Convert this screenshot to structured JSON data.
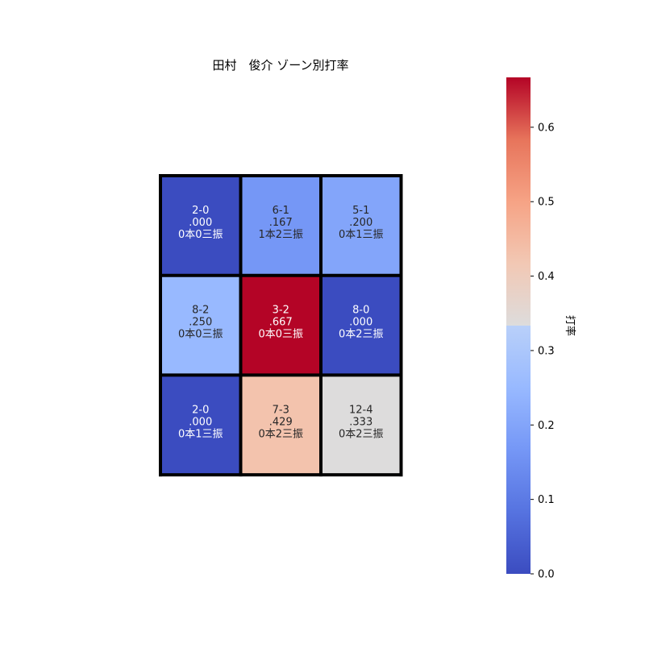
{
  "chart_data": {
    "type": "heatmap",
    "title": "田村　俊介 ゾーン別打率",
    "colorbar": {
      "label": "打率",
      "range": [
        0.0,
        0.667
      ],
      "ticks": [
        0.0,
        0.1,
        0.2,
        0.3,
        0.4,
        0.5,
        0.6
      ],
      "tick_labels": [
        "0.0",
        "0.1",
        "0.2",
        "0.3",
        "0.4",
        "0.5",
        "0.6"
      ],
      "colormap": "coolwarm"
    },
    "grid": {
      "rows": 3,
      "cols": 3,
      "cells": [
        [
          {
            "record": "2-0",
            "avg_label": ".000",
            "value": 0.0,
            "detail": "0本0三振"
          },
          {
            "record": "6-1",
            "avg_label": ".167",
            "value": 0.167,
            "detail": "1本2三振"
          },
          {
            "record": "5-1",
            "avg_label": ".200",
            "value": 0.2,
            "detail": "0本1三振"
          }
        ],
        [
          {
            "record": "8-2",
            "avg_label": ".250",
            "value": 0.25,
            "detail": "0本0三振"
          },
          {
            "record": "3-2",
            "avg_label": ".667",
            "value": 0.667,
            "detail": "0本0三振"
          },
          {
            "record": "8-0",
            "avg_label": ".000",
            "value": 0.0,
            "detail": "0本2三振"
          }
        ],
        [
          {
            "record": "2-0",
            "avg_label": ".000",
            "value": 0.0,
            "detail": "0本1三振"
          },
          {
            "record": "7-3",
            "avg_label": ".429",
            "value": 0.429,
            "detail": "0本2三振"
          },
          {
            "record": "12-4",
            "avg_label": ".333",
            "value": 0.333,
            "detail": "0本2三振"
          }
        ]
      ]
    }
  }
}
